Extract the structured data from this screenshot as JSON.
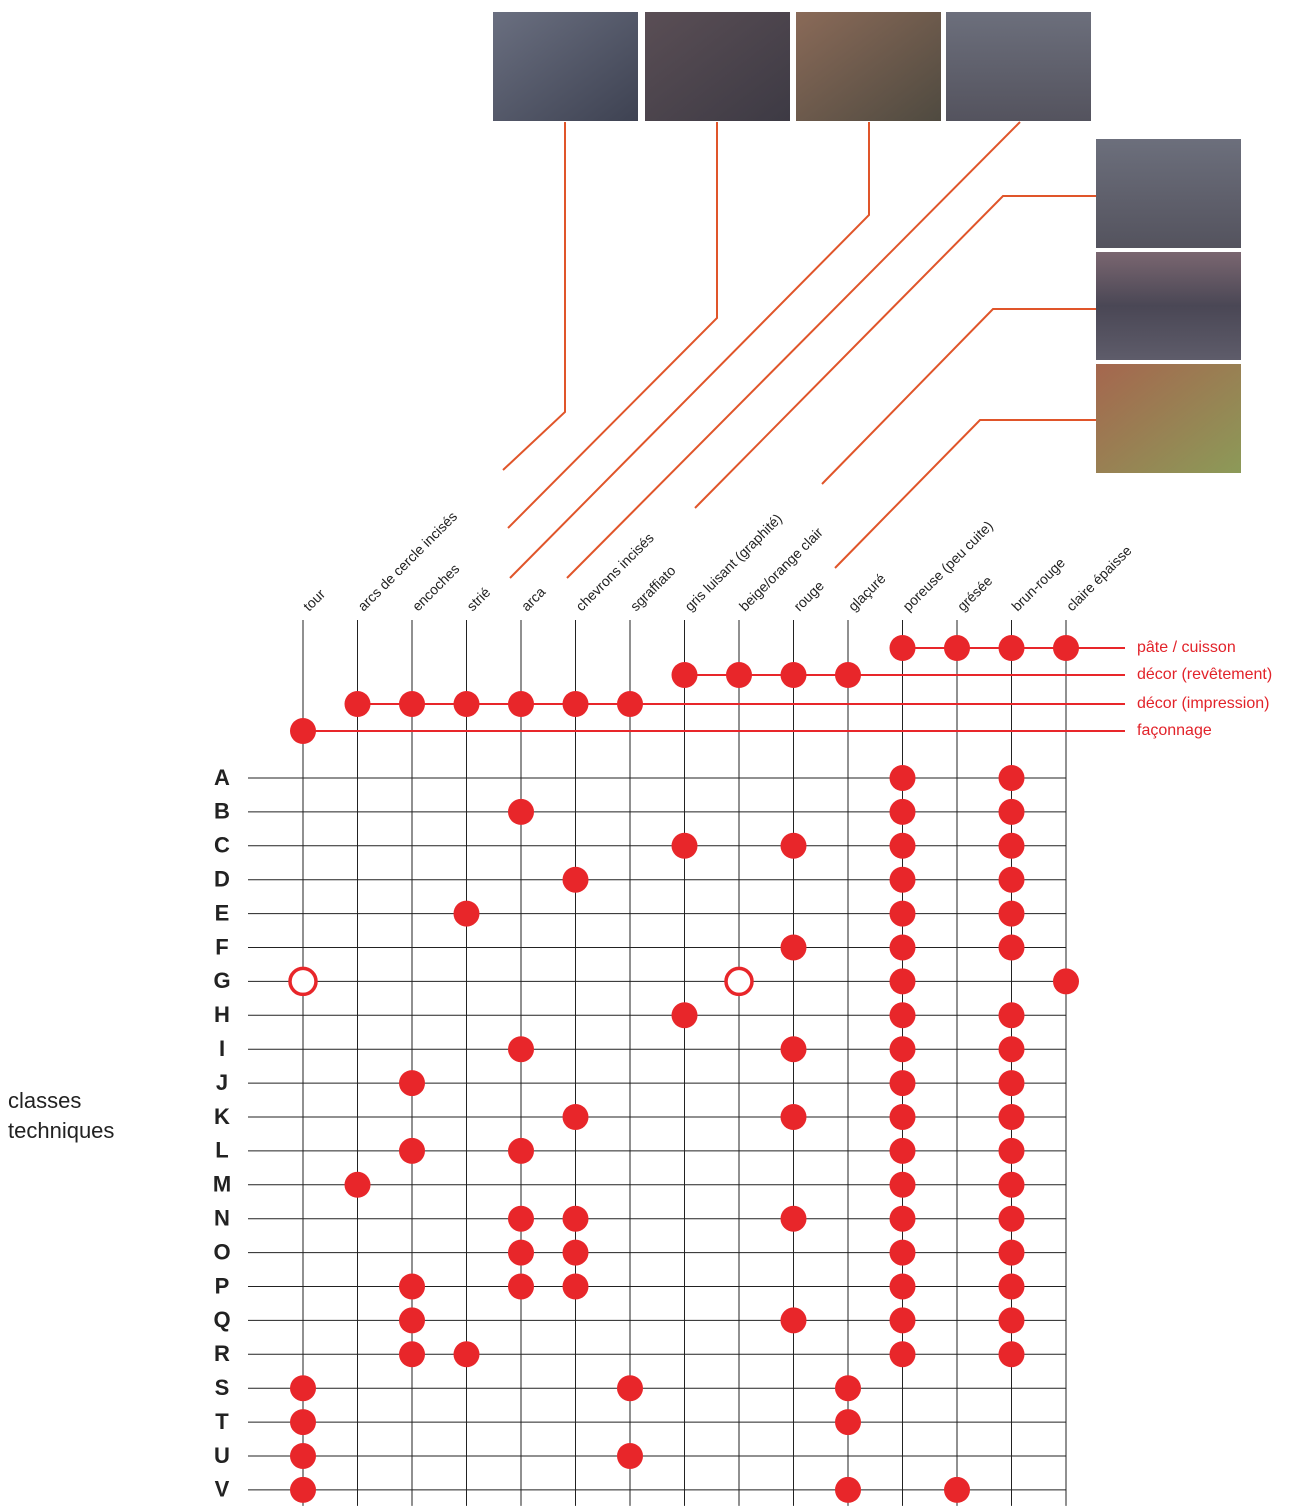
{
  "side_label": "classes techniques",
  "column_labels": [
    "tour",
    "arcs de cercle incisés",
    "encoches",
    "strié",
    "arca",
    "chevrons incisés",
    "sgraffiato",
    "gris luisant (graphité)",
    "beige/orange clair",
    "rouge",
    "glaçuré",
    "poreuse (peu cuite)",
    "grésée",
    "brun-rouge",
    "claire épaisse"
  ],
  "groups": [
    {
      "label": "pâte / cuisson",
      "columns": [
        11,
        12,
        13,
        14
      ]
    },
    {
      "label": "décor (revêtement)",
      "columns": [
        7,
        8,
        9,
        10
      ]
    },
    {
      "label": "décor (impression)",
      "columns": [
        1,
        2,
        3,
        4,
        5,
        6
      ]
    },
    {
      "label": "façonnage",
      "columns": [
        0
      ]
    }
  ],
  "rows": [
    {
      "label": "A",
      "filled": [
        11,
        13
      ]
    },
    {
      "label": "B",
      "filled": [
        4,
        11,
        13
      ]
    },
    {
      "label": "C",
      "filled": [
        7,
        9,
        11,
        13
      ]
    },
    {
      "label": "D",
      "filled": [
        5,
        11,
        13
      ]
    },
    {
      "label": "E",
      "filled": [
        3,
        11,
        13
      ]
    },
    {
      "label": "F",
      "filled": [
        9,
        11,
        13
      ]
    },
    {
      "label": "G",
      "filled": [
        11,
        14
      ],
      "open": [
        0,
        8
      ]
    },
    {
      "label": "H",
      "filled": [
        7,
        11,
        13
      ]
    },
    {
      "label": "I",
      "filled": [
        4,
        9,
        11,
        13
      ]
    },
    {
      "label": "J",
      "filled": [
        2,
        11,
        13
      ]
    },
    {
      "label": "K",
      "filled": [
        5,
        9,
        11,
        13
      ]
    },
    {
      "label": "L",
      "filled": [
        2,
        4,
        11,
        13
      ]
    },
    {
      "label": "M",
      "filled": [
        1,
        11,
        13
      ]
    },
    {
      "label": "N",
      "filled": [
        4,
        5,
        9,
        11,
        13
      ]
    },
    {
      "label": "O",
      "filled": [
        4,
        5,
        11,
        13
      ]
    },
    {
      "label": "P",
      "filled": [
        2,
        4,
        5,
        11,
        13
      ]
    },
    {
      "label": "Q",
      "filled": [
        2,
        9,
        11,
        13
      ]
    },
    {
      "label": "R",
      "filled": [
        2,
        3,
        11,
        13
      ]
    },
    {
      "label": "S",
      "filled": [
        0,
        6,
        10
      ]
    },
    {
      "label": "T",
      "filled": [
        0,
        10
      ]
    },
    {
      "label": "U",
      "filled": [
        0,
        6
      ]
    },
    {
      "label": "V",
      "filled": [
        0,
        10,
        12
      ]
    }
  ]
}
